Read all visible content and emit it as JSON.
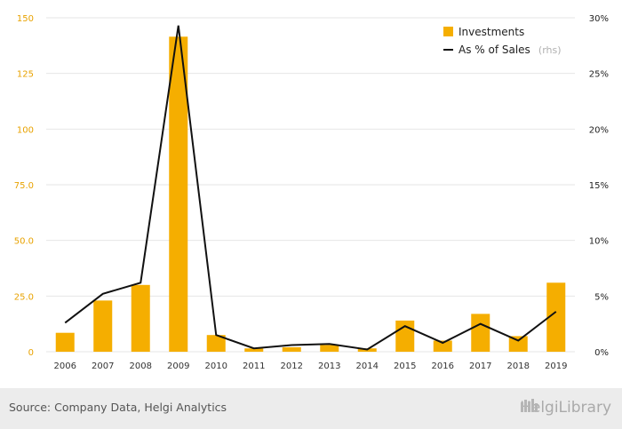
{
  "chart_data": {
    "type": "bar",
    "categories": [
      "2006",
      "2007",
      "2008",
      "2009",
      "2010",
      "2011",
      "2012",
      "2013",
      "2014",
      "2015",
      "2016",
      "2017",
      "2018",
      "2019"
    ],
    "series": [
      {
        "name": "Investments",
        "type": "bar",
        "axis": "left",
        "values": [
          8.5,
          23,
          30,
          141.5,
          7.5,
          1.5,
          2,
          3,
          1.5,
          14,
          5,
          17,
          7,
          31
        ]
      },
      {
        "name": "As % of Sales",
        "type": "line",
        "axis": "right",
        "values": [
          2.6,
          5.2,
          6.2,
          29.3,
          1.5,
          0.3,
          0.6,
          0.7,
          0.2,
          2.3,
          0.8,
          2.5,
          1.0,
          3.6
        ]
      }
    ],
    "left_axis": {
      "ylim": [
        0,
        150
      ],
      "ticks": [
        0,
        25,
        50,
        75,
        100,
        125,
        150
      ],
      "tick_labels": [
        "0",
        "25.0",
        "50.0",
        "75.0",
        "100",
        "125",
        "150"
      ]
    },
    "right_axis": {
      "ylim": [
        0,
        30
      ],
      "ticks": [
        0,
        5,
        10,
        15,
        20,
        25,
        30
      ],
      "tick_labels": [
        "0%",
        "5%",
        "10%",
        "15%",
        "20%",
        "25%",
        "30%"
      ]
    },
    "legend": {
      "placement": "top-right",
      "rhs_note": "(rhs)"
    },
    "grid": true,
    "colors": {
      "bar": "#f5ae00",
      "line": "#111111",
      "left_ticks": "#e8a200"
    }
  },
  "footer": {
    "source": "Source: Company Data, Helgi Analytics",
    "brand": "HelgiLibrary"
  }
}
